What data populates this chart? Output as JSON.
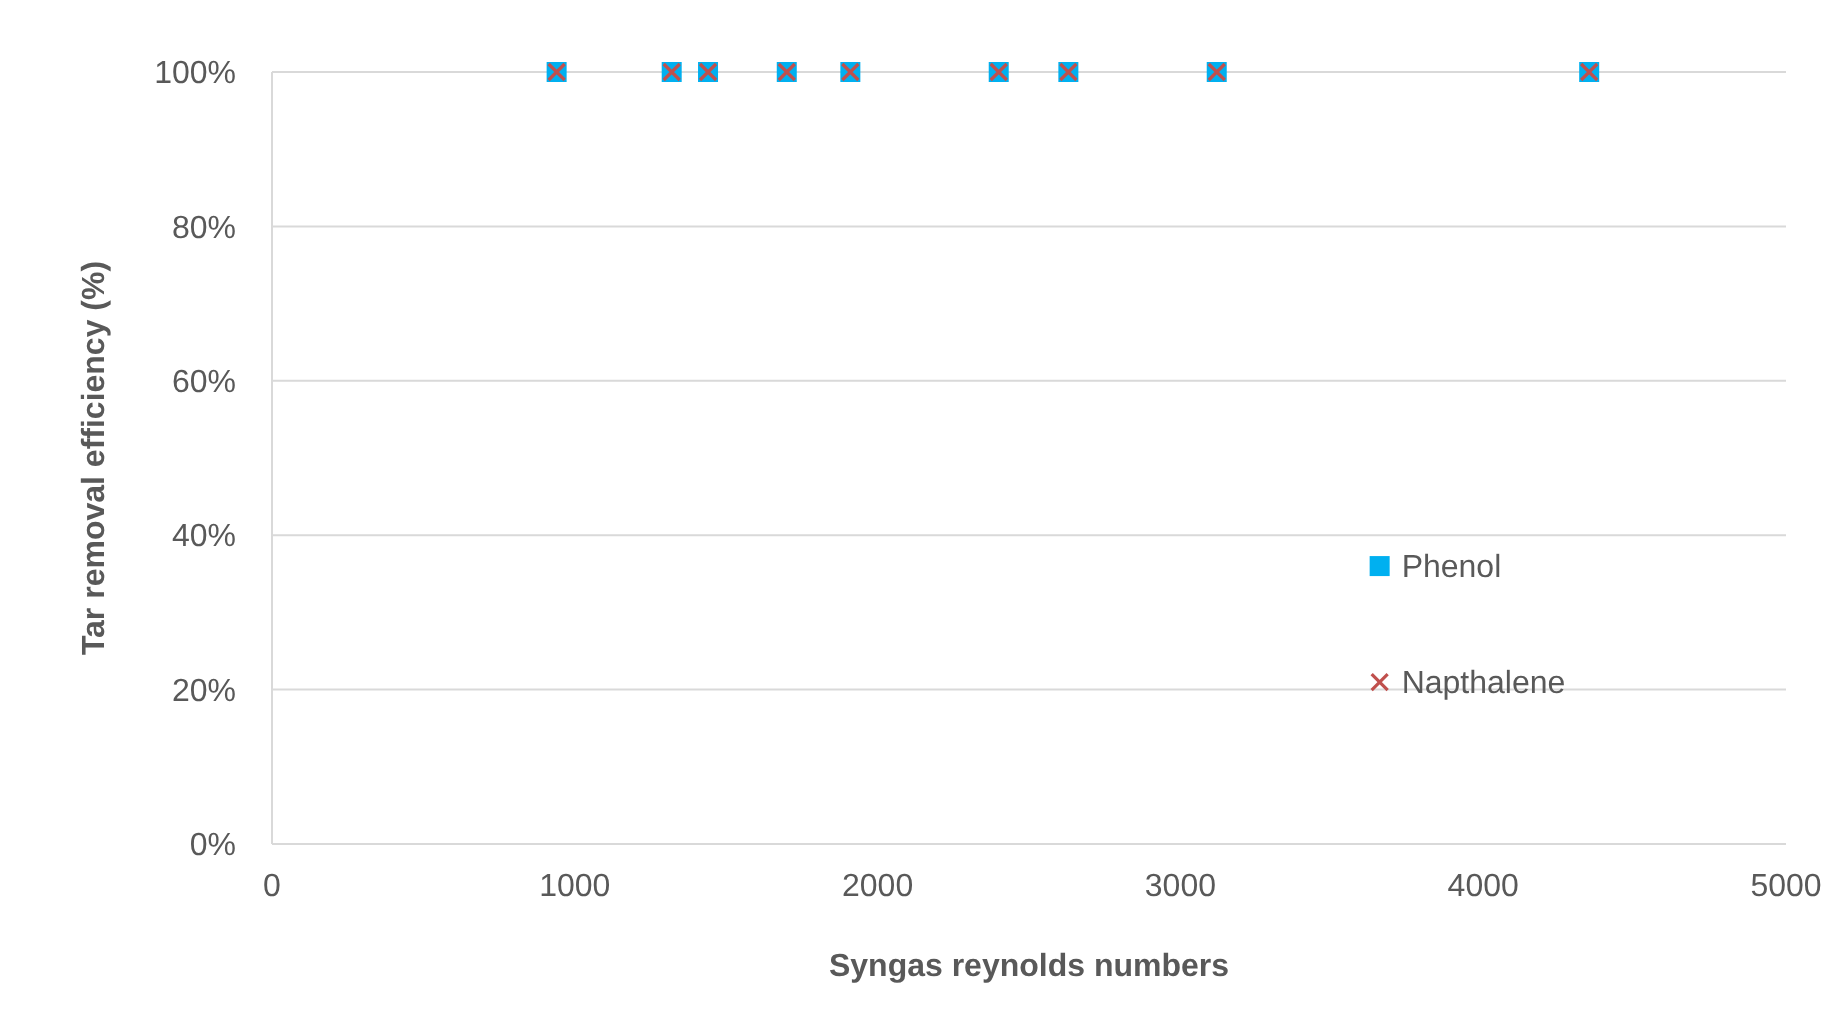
{
  "chart_data": {
    "type": "scatter",
    "xlabel": "Syngas reynolds numbers",
    "ylabel": "Tar removal efficiency (%)",
    "xlim": [
      0,
      5000
    ],
    "xticks": [
      0,
      1000,
      2000,
      3000,
      4000,
      5000
    ],
    "ylim": [
      0,
      100
    ],
    "yticks": [
      {
        "value": 0,
        "label": "0%"
      },
      {
        "value": 20,
        "label": "20%"
      },
      {
        "value": 40,
        "label": "40%"
      },
      {
        "value": 60,
        "label": "60%"
      },
      {
        "value": 80,
        "label": "80%"
      },
      {
        "value": 100,
        "label": "100%"
      }
    ],
    "grid": "y",
    "legend": "right",
    "x": [
      940,
      1320,
      1440,
      1700,
      1910,
      2400,
      2630,
      3120,
      4350
    ],
    "series": [
      {
        "name": "Phenol",
        "color": "#00b0f0",
        "marker": "square",
        "values": [
          100,
          100,
          100,
          100,
          100,
          100,
          100,
          100,
          100
        ]
      },
      {
        "name": "Napthalene",
        "color": "#c0504d",
        "marker": "cross",
        "values": [
          100,
          100,
          100,
          100,
          100,
          100,
          100,
          100,
          100
        ]
      }
    ]
  }
}
